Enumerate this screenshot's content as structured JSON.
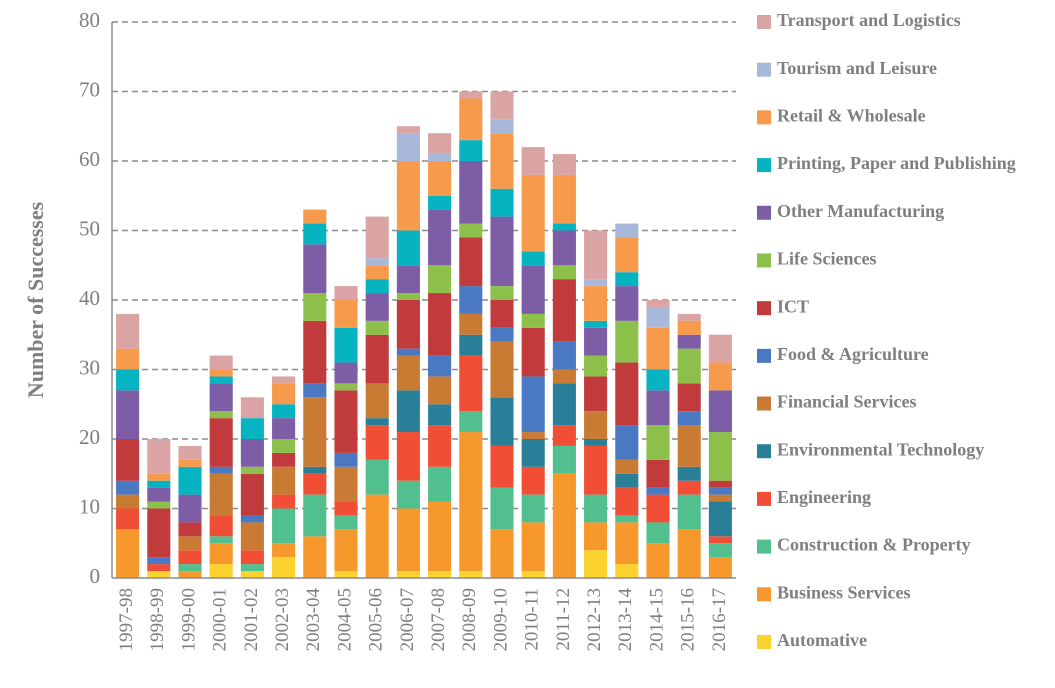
{
  "chart_data": {
    "type": "stacked_bar",
    "y_label": "Number of Successes",
    "categories": [
      "1997-98",
      "1998-99",
      "1999-00",
      "2000-01",
      "2001-02",
      "2002-03",
      "2003-04",
      "2004-05",
      "2005-06",
      "2006-07",
      "2007-08",
      "2008-09",
      "2009-10",
      "2010-11",
      "2011-12",
      "2012-13",
      "2013-14",
      "2014-15",
      "2015-16",
      "2016-17"
    ],
    "ylim": [
      0,
      80
    ],
    "yticks": [
      0,
      10,
      20,
      30,
      40,
      50,
      60,
      70,
      80
    ],
    "grid": true,
    "series": [
      {
        "name": "Automative",
        "color": "#fcd22f",
        "values": [
          0,
          1,
          0,
          2,
          1,
          3,
          0,
          1,
          0,
          1,
          1,
          1,
          0,
          1,
          0,
          4,
          2,
          0,
          0,
          0
        ]
      },
      {
        "name": "Business Services",
        "color": "#f7982d",
        "values": [
          7,
          0,
          1,
          3,
          0,
          2,
          6,
          6,
          12,
          9,
          10,
          20,
          7,
          7,
          15,
          4,
          6,
          5,
          7,
          3
        ]
      },
      {
        "name": "Construction & Property",
        "color": "#52bf8e",
        "values": [
          0,
          0,
          1,
          1,
          1,
          5,
          6,
          2,
          5,
          4,
          5,
          3,
          6,
          4,
          4,
          4,
          1,
          3,
          5,
          2
        ]
      },
      {
        "name": "Engineering",
        "color": "#f04f36",
        "values": [
          3,
          1,
          2,
          3,
          2,
          2,
          3,
          2,
          5,
          7,
          6,
          8,
          6,
          4,
          3,
          7,
          4,
          4,
          2,
          1
        ]
      },
      {
        "name": "Environmental Technology",
        "color": "#2a7f98",
        "values": [
          0,
          0,
          0,
          0,
          0,
          0,
          1,
          0,
          1,
          6,
          3,
          3,
          7,
          4,
          6,
          1,
          2,
          0,
          2,
          5
        ]
      },
      {
        "name": "Financial Services",
        "color": "#c97b34",
        "values": [
          2,
          0,
          2,
          6,
          4,
          4,
          10,
          5,
          5,
          5,
          4,
          3,
          8,
          1,
          2,
          4,
          2,
          0,
          6,
          1
        ]
      },
      {
        "name": "Food & Agriculture",
        "color": "#4a78c3",
        "values": [
          2,
          1,
          0,
          1,
          1,
          0,
          2,
          2,
          0,
          1,
          3,
          4,
          2,
          8,
          4,
          0,
          5,
          1,
          2,
          1
        ]
      },
      {
        "name": "ICT",
        "color": "#c23b3c",
        "values": [
          6,
          7,
          2,
          7,
          6,
          2,
          9,
          9,
          7,
          7,
          9,
          7,
          4,
          7,
          9,
          5,
          9,
          4,
          4,
          1
        ]
      },
      {
        "name": "Life Sciences",
        "color": "#8dbf4b",
        "values": [
          0,
          1,
          0,
          1,
          1,
          2,
          4,
          1,
          2,
          1,
          4,
          2,
          2,
          2,
          2,
          3,
          6,
          5,
          5,
          7
        ]
      },
      {
        "name": "Other Manufacturing",
        "color": "#7d5ea6",
        "values": [
          7,
          2,
          4,
          4,
          4,
          3,
          7,
          3,
          4,
          4,
          8,
          9,
          10,
          7,
          5,
          4,
          5,
          5,
          2,
          6
        ]
      },
      {
        "name": "Printing, Paper and Publishing",
        "color": "#06b3c0",
        "values": [
          3,
          1,
          4,
          1,
          3,
          2,
          3,
          5,
          2,
          5,
          2,
          3,
          4,
          2,
          1,
          1,
          2,
          3,
          0,
          0
        ]
      },
      {
        "name": "Retail & Wholesale",
        "color": "#f89a4c",
        "values": [
          3,
          1,
          1,
          1,
          0,
          3,
          2,
          4,
          2,
          10,
          5,
          6,
          8,
          11,
          7,
          5,
          5,
          6,
          2,
          4
        ]
      },
      {
        "name": "Tourism and Leisure",
        "color": "#a7b8da",
        "values": [
          0,
          0,
          0,
          0,
          0,
          0,
          0,
          0,
          1,
          4,
          1,
          0,
          2,
          0,
          0,
          1,
          2,
          3,
          0,
          0
        ]
      },
      {
        "name": "Transport and Logistics",
        "color": "#dba4a4",
        "values": [
          5,
          5,
          2,
          2,
          3,
          1,
          0,
          2,
          6,
          1,
          3,
          1,
          4,
          4,
          3,
          7,
          0,
          1,
          1,
          4
        ]
      }
    ]
  }
}
